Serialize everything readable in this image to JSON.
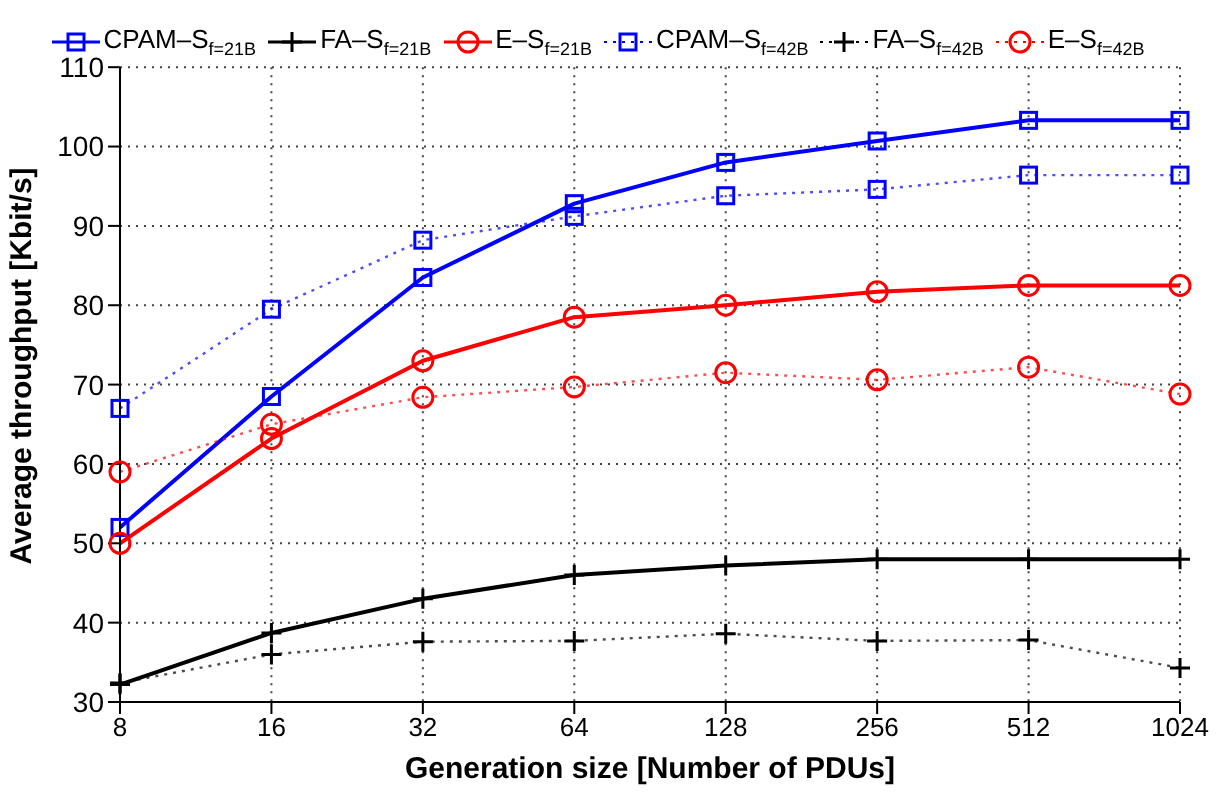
{
  "chart_data": {
    "type": "line",
    "xlabel": "Generation size [Number of PDUs]",
    "ylabel": "Average throughput [Kbit/s]",
    "categories": [
      "8",
      "16",
      "32",
      "64",
      "128",
      "256",
      "512",
      "1024"
    ],
    "series": [
      {
        "name": "CPAM–S$_{f=21B}$",
        "color": "#0000ff",
        "marker": "square",
        "line_style": "solid",
        "values": [
          52,
          68.5,
          83.5,
          92.8,
          98,
          100.7,
          103.3,
          103.3
        ]
      },
      {
        "name": "FA–S$_{f=21B}$",
        "color": "#000000",
        "marker": "cross",
        "line_style": "solid",
        "values": [
          32.2,
          38.7,
          43,
          46,
          47.2,
          48,
          48,
          48
        ]
      },
      {
        "name": "E–S$_{f=21B}$",
        "color": "#ff0000",
        "marker": "circle",
        "line_style": "solid",
        "values": [
          50,
          63.2,
          73,
          78.5,
          80,
          81.7,
          82.5,
          82.5
        ]
      },
      {
        "name": "CPAM–S$_{f=42B}$",
        "color": "#0000ff",
        "marker": "square",
        "line_style": "dotted",
        "values": [
          67,
          79.5,
          88.2,
          91.2,
          93.8,
          94.6,
          96.4,
          96.4
        ]
      },
      {
        "name": "FA–S$_{f=42B}$",
        "color": "#000000",
        "marker": "cross",
        "line_style": "dotted",
        "values": [
          32.4,
          36,
          37.6,
          37.7,
          38.6,
          37.7,
          37.8,
          34.3
        ]
      },
      {
        "name": "E–S$_{f=42B}$",
        "color": "#ff0000",
        "marker": "circle",
        "line_style": "dotted",
        "values": [
          59,
          65,
          68.4,
          69.7,
          71.5,
          70.6,
          72.2,
          68.8
        ]
      }
    ],
    "ylim": [
      30,
      110
    ],
    "yticks": [
      30,
      40,
      50,
      60,
      70,
      80,
      90,
      100,
      110
    ],
    "grid": true,
    "legend": "top"
  }
}
